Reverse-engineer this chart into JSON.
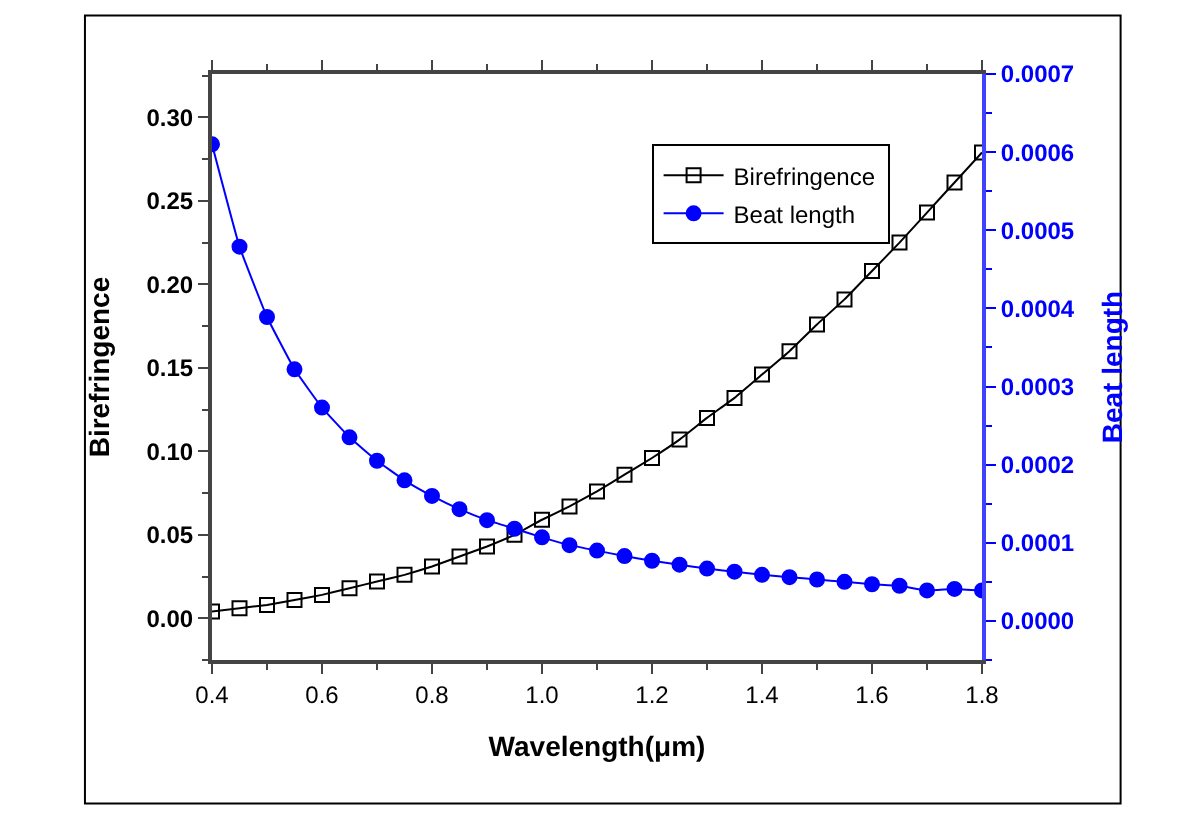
{
  "chart_data": {
    "type": "line",
    "xlabel": "Wavelength(μm)",
    "ylabel": "Birefringence",
    "y2label": "Beat length",
    "x": [
      0.4,
      0.45,
      0.5,
      0.55,
      0.6,
      0.65,
      0.7,
      0.75,
      0.8,
      0.85,
      0.9,
      0.95,
      1.0,
      1.05,
      1.1,
      1.15,
      1.2,
      1.25,
      1.3,
      1.35,
      1.4,
      1.45,
      1.5,
      1.55,
      1.6,
      1.65,
      1.7,
      1.75,
      1.8
    ],
    "series": [
      {
        "name": "Birefringence",
        "color": "#000000",
        "marker": "square",
        "axis": "y",
        "values": [
          0.004,
          0.006,
          0.008,
          0.011,
          0.014,
          0.018,
          0.022,
          0.026,
          0.031,
          0.037,
          0.043,
          0.05,
          0.059,
          0.067,
          0.076,
          0.086,
          0.096,
          0.107,
          0.12,
          0.132,
          0.146,
          0.16,
          0.176,
          0.191,
          0.208,
          0.225,
          0.243,
          0.261,
          0.279
        ]
      },
      {
        "name": "Beat length",
        "color": "#0000ff",
        "marker": "circle",
        "axis": "y2",
        "values": [
          0.00061,
          0.000479,
          0.000389,
          0.000322,
          0.000273,
          0.000235,
          0.000205,
          0.00018,
          0.00016,
          0.000143,
          0.000129,
          0.000118,
          0.000107,
          9.7e-05,
          9e-05,
          8.3e-05,
          7.7e-05,
          7.2e-05,
          6.7e-05,
          6.3e-05,
          5.9e-05,
          5.6e-05,
          5.3e-05,
          5e-05,
          4.7e-05,
          4.5e-05,
          3.9e-05,
          4.1e-05,
          3.9e-05
        ]
      }
    ],
    "xlim": [
      0.4,
      1.8
    ],
    "xticks": [
      {
        "value": 0.4,
        "label": "0.4"
      },
      {
        "value": 0.6,
        "label": "0.6"
      },
      {
        "value": 0.8,
        "label": "0.8"
      },
      {
        "value": 1.0,
        "label": "1.0"
      },
      {
        "value": 1.2,
        "label": "1.2"
      },
      {
        "value": 1.4,
        "label": "1.4"
      },
      {
        "value": 1.6,
        "label": "1.6"
      },
      {
        "value": 1.8,
        "label": "1.8"
      }
    ],
    "ylim": [
      -0.025,
      0.326
    ],
    "yticks": [
      {
        "value": 0,
        "label": "0.00"
      },
      {
        "value": 0.05,
        "label": "0.05"
      },
      {
        "value": 0.1,
        "label": "0.10"
      },
      {
        "value": 0.15,
        "label": "0.15"
      },
      {
        "value": 0.2,
        "label": "0.20"
      },
      {
        "value": 0.25,
        "label": "0.25"
      },
      {
        "value": 0.3,
        "label": "0.30"
      }
    ],
    "y2lim": [
      -5e-05,
      0.0007
    ],
    "y2ticks": [
      {
        "value": 0,
        "label": "0.0000"
      },
      {
        "value": 0.0001,
        "label": "0.0001"
      },
      {
        "value": 0.0002,
        "label": "0.0002"
      },
      {
        "value": 0.0003,
        "label": "0.0003"
      },
      {
        "value": 0.0004,
        "label": "0.0004"
      },
      {
        "value": 0.0005,
        "label": "0.0005"
      },
      {
        "value": 0.0006,
        "label": "0.0006"
      },
      {
        "value": 0.0007,
        "label": "0.0007"
      }
    ],
    "legend": "top right",
    "line_style": "solid"
  }
}
